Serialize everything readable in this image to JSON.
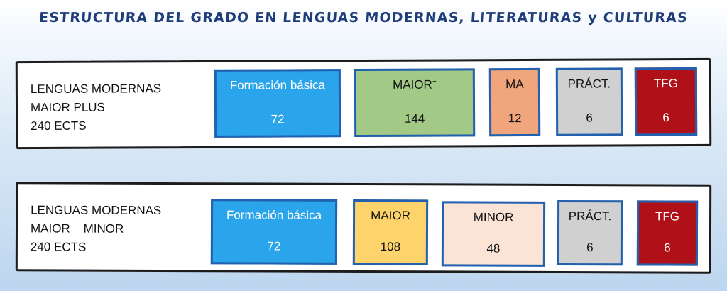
{
  "title": "ESTRUCTURA DEL GRADO EN LENGUAS MODERNAS, LITERATURAS y CULTURAS",
  "rows": [
    {
      "label": [
        "LENGUAS MODERNAS",
        "MAIOR PLUS",
        "240 ECTS"
      ],
      "blocks": [
        {
          "name": "Formación básica",
          "value": "72",
          "color": "#2aa4ea",
          "text_color": "#ffffff"
        },
        {
          "name": "MAIOR",
          "name_sup": "+",
          "value": "144",
          "color": "#a3c986",
          "text_color": "#111111"
        },
        {
          "name": "MA",
          "value": "12",
          "color": "#f0a57c",
          "text_color": "#111111"
        },
        {
          "name": "PRÁCT.",
          "value": "6",
          "color": "#d0d0d0",
          "text_color": "#111111"
        },
        {
          "name": "TFG",
          "value": "6",
          "color": "#b01119",
          "text_color": "#ffffff"
        }
      ]
    },
    {
      "label": [
        "LENGUAS MODERNAS",
        "MAIOR    MINOR",
        "240 ECTS"
      ],
      "blocks": [
        {
          "name": "Formación básica",
          "value": "72",
          "color": "#2aa4ea",
          "text_color": "#ffffff"
        },
        {
          "name": "MAIOR",
          "value": "108",
          "color": "#fdd36b",
          "text_color": "#111111"
        },
        {
          "name": "MINOR",
          "value": "48",
          "color": "#fbe4d6",
          "text_color": "#111111"
        },
        {
          "name": "PRÁCT.",
          "value": "6",
          "color": "#d0d0d0",
          "text_color": "#111111"
        },
        {
          "name": "TFG",
          "value": "6",
          "color": "#b01119",
          "text_color": "#ffffff"
        }
      ]
    }
  ],
  "colors": {
    "box_border": "#2161b0",
    "title": "#1f3d7a"
  }
}
